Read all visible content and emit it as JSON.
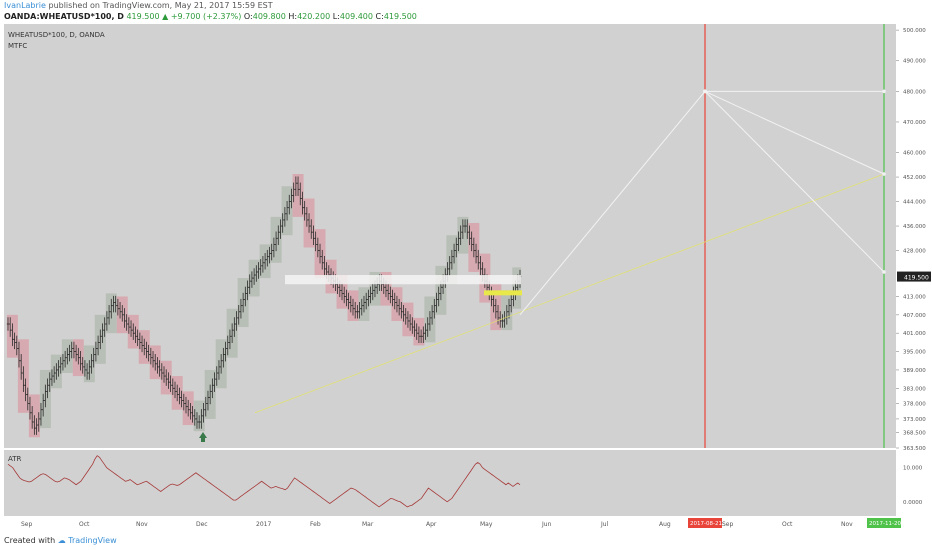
{
  "header": {
    "author": "IvanLabrie",
    "published_text": "published on TradingView.com, May 21, 2017 15:59 EST",
    "symbol_text": "OANDA:WHEATUSD*100, D",
    "last": "419.500",
    "change": "+9.700 (+2.37%)",
    "ohlc": [
      {
        "label": "O:",
        "value": "409.800"
      },
      {
        "label": "H:",
        "value": "420.200"
      },
      {
        "label": "L:",
        "value": "409.400"
      },
      {
        "label": "C:",
        "value": "419.500"
      }
    ]
  },
  "footer": {
    "created_with": "Created with",
    "brand": "TradingView"
  },
  "colors": {
    "pane_bg": "#d1d1d1",
    "up_box": "#b8bfb6",
    "down_box": "#d6aab0",
    "bar": "#2a2a2a",
    "red_line": "#e8443a",
    "green_line": "#4fc24a",
    "projection": "#f2f2f2",
    "trendline": "#e3e36a",
    "atr_line": "#a63a3a"
  },
  "chart_data": [
    {
      "type": "candlestick",
      "title": "WHEATUSD*100, D, OANDA",
      "indicator_label": "MTFC",
      "ylim": [
        363.5,
        502
      ],
      "y_ticks": [
        "500.000",
        "490.000",
        "480.000",
        "470.000",
        "460.000",
        "452.000",
        "444.000",
        "436.000",
        "428.000",
        "419.500",
        "413.000",
        "407.000",
        "401.000",
        "395.000",
        "389.000",
        "383.000",
        "378.000",
        "373.000",
        "368.500",
        "363.500"
      ],
      "x_ticks": [
        "Sep",
        "Oct",
        "Nov",
        "Dec",
        "2017",
        "Feb",
        "Mar",
        "Apr",
        "May",
        "Jun",
        "Jul",
        "Aug",
        "2017-08-21",
        "Sep",
        "Oct",
        "Nov",
        "2017-11-20"
      ],
      "last_price": "419.500",
      "projection": {
        "start": {
          "date": "2017-05-19",
          "value": 407
        },
        "high_point": {
          "date": "2017-08-21",
          "value": 480
        },
        "end_points": [
          {
            "date": "2017-11-20",
            "value": 480
          },
          {
            "date": "2017-11-20",
            "value": 453
          },
          {
            "date": "2017-11-20",
            "value": 421
          }
        ]
      },
      "trendline": {
        "start": {
          "date": "2016-12-14",
          "value": 375
        },
        "end": {
          "date": "2017-11-20",
          "value": 453
        }
      },
      "vertical_markers": [
        {
          "date": "2017-08-21",
          "color": "red"
        },
        {
          "date": "2017-11-20",
          "color": "green"
        }
      ],
      "support_zone": [
        417,
        420
      ],
      "close_series": [
        404,
        402,
        399,
        398,
        396,
        392,
        388,
        384,
        381,
        378,
        375,
        372,
        370,
        371,
        373,
        376,
        379,
        382,
        384,
        386,
        387,
        388,
        389,
        390,
        391,
        392,
        393,
        394,
        395,
        396,
        395,
        394,
        393,
        391,
        390,
        389,
        388,
        390,
        392,
        394,
        396,
        398,
        400,
        402,
        404,
        406,
        408,
        410,
        411,
        410,
        409,
        408,
        407,
        405,
        404,
        403,
        402,
        401,
        400,
        399,
        398,
        397,
        396,
        395,
        394,
        393,
        392,
        391,
        390,
        389,
        388,
        387,
        386,
        385,
        384,
        383,
        382,
        381,
        380,
        379,
        378,
        377,
        376,
        375,
        374,
        373,
        372,
        372,
        374,
        376,
        378,
        380,
        382,
        384,
        386,
        388,
        390,
        392,
        394,
        396,
        398,
        400,
        402,
        404,
        406,
        408,
        410,
        412,
        414,
        416,
        418,
        419,
        420,
        421,
        422,
        423,
        424,
        425,
        426,
        427,
        428,
        430,
        432,
        434,
        436,
        438,
        440,
        442,
        444,
        446,
        448,
        450,
        448,
        445,
        442,
        440,
        438,
        436,
        434,
        432,
        430,
        428,
        426,
        424,
        422,
        421,
        420,
        419,
        418,
        417,
        416,
        415,
        414,
        413,
        412,
        411,
        410,
        409,
        408,
        408,
        409,
        410,
        411,
        412,
        413,
        414,
        415,
        416,
        417,
        418,
        417,
        416,
        415,
        414,
        413,
        412,
        411,
        410,
        409,
        408,
        407,
        406,
        405,
        404,
        403,
        402,
        401,
        400,
        400,
        401,
        402,
        404,
        406,
        408,
        410,
        412,
        414,
        416,
        418,
        420,
        422,
        424,
        426,
        428,
        430,
        432,
        434,
        436,
        436,
        434,
        432,
        430,
        428,
        426,
        424,
        422,
        420,
        418,
        416,
        414,
        412,
        410,
        408,
        406,
        405,
        405,
        406,
        408,
        410,
        412,
        414,
        416,
        418,
        419.5
      ]
    },
    {
      "type": "line",
      "title": "ATR",
      "ylim": [
        -3,
        14
      ],
      "y_ticks": [
        "10.000",
        "0.0000"
      ],
      "values": [
        11.0,
        10.5,
        10.0,
        9.0,
        8.0,
        7.0,
        6.5,
        6.2,
        6.0,
        5.8,
        6.0,
        6.5,
        7.0,
        7.5,
        8.0,
        8.2,
        8.0,
        7.5,
        7.0,
        6.5,
        6.0,
        5.8,
        6.0,
        6.5,
        7.0,
        6.8,
        6.5,
        6.0,
        5.5,
        5.0,
        5.5,
        6.0,
        7.0,
        8.0,
        9.0,
        10.0,
        11.0,
        12.5,
        13.5,
        13.0,
        12.0,
        11.0,
        10.0,
        9.5,
        9.0,
        8.5,
        8.0,
        7.5,
        7.0,
        6.5,
        6.0,
        6.2,
        6.5,
        6.0,
        5.5,
        5.0,
        5.2,
        5.5,
        5.8,
        6.0,
        5.5,
        5.0,
        4.5,
        4.0,
        3.5,
        3.0,
        3.5,
        4.0,
        4.5,
        5.0,
        5.2,
        5.0,
        4.8,
        5.0,
        5.5,
        6.0,
        6.5,
        7.0,
        7.5,
        8.0,
        8.5,
        8.0,
        7.5,
        7.0,
        6.5,
        6.0,
        5.5,
        5.0,
        4.5,
        4.0,
        3.5,
        3.0,
        2.5,
        2.0,
        1.5,
        1.0,
        0.5,
        0.5,
        1.0,
        1.5,
        2.0,
        2.5,
        3.0,
        3.5,
        4.0,
        4.5,
        5.0,
        5.5,
        6.0,
        5.5,
        5.0,
        4.5,
        4.0,
        4.2,
        4.5,
        4.2,
        4.0,
        3.8,
        3.5,
        4.0,
        5.0,
        6.0,
        7.0,
        6.5,
        6.0,
        5.5,
        5.0,
        4.5,
        4.0,
        3.5,
        3.0,
        2.5,
        2.0,
        1.5,
        1.0,
        0.5,
        0.0,
        -0.5,
        0.0,
        0.5,
        1.0,
        1.5,
        2.0,
        2.5,
        3.0,
        3.5,
        4.0,
        3.8,
        3.5,
        3.0,
        2.5,
        2.0,
        1.5,
        1.0,
        0.5,
        0.0,
        -0.5,
        -1.0,
        -1.5,
        -1.0,
        -0.5,
        0.0,
        0.5,
        1.0,
        0.8,
        0.5,
        0.2,
        0.0,
        -0.5,
        -1.0,
        -1.5,
        -1.2,
        -1.0,
        -0.5,
        0.0,
        0.5,
        1.0,
        2.0,
        3.0,
        4.0,
        3.5,
        3.0,
        2.5,
        2.0,
        1.5,
        1.0,
        0.5,
        0.0,
        0.5,
        1.0,
        2.0,
        3.0,
        4.0,
        5.0,
        6.0,
        7.0,
        8.0,
        9.0,
        10.0,
        11.0,
        11.5,
        11.0,
        10.0,
        9.5,
        9.0,
        8.5,
        8.0,
        7.5,
        7.0,
        6.5,
        6.0,
        5.5,
        5.0,
        5.5,
        5.0,
        4.5,
        5.0,
        5.5,
        5.0
      ]
    }
  ]
}
